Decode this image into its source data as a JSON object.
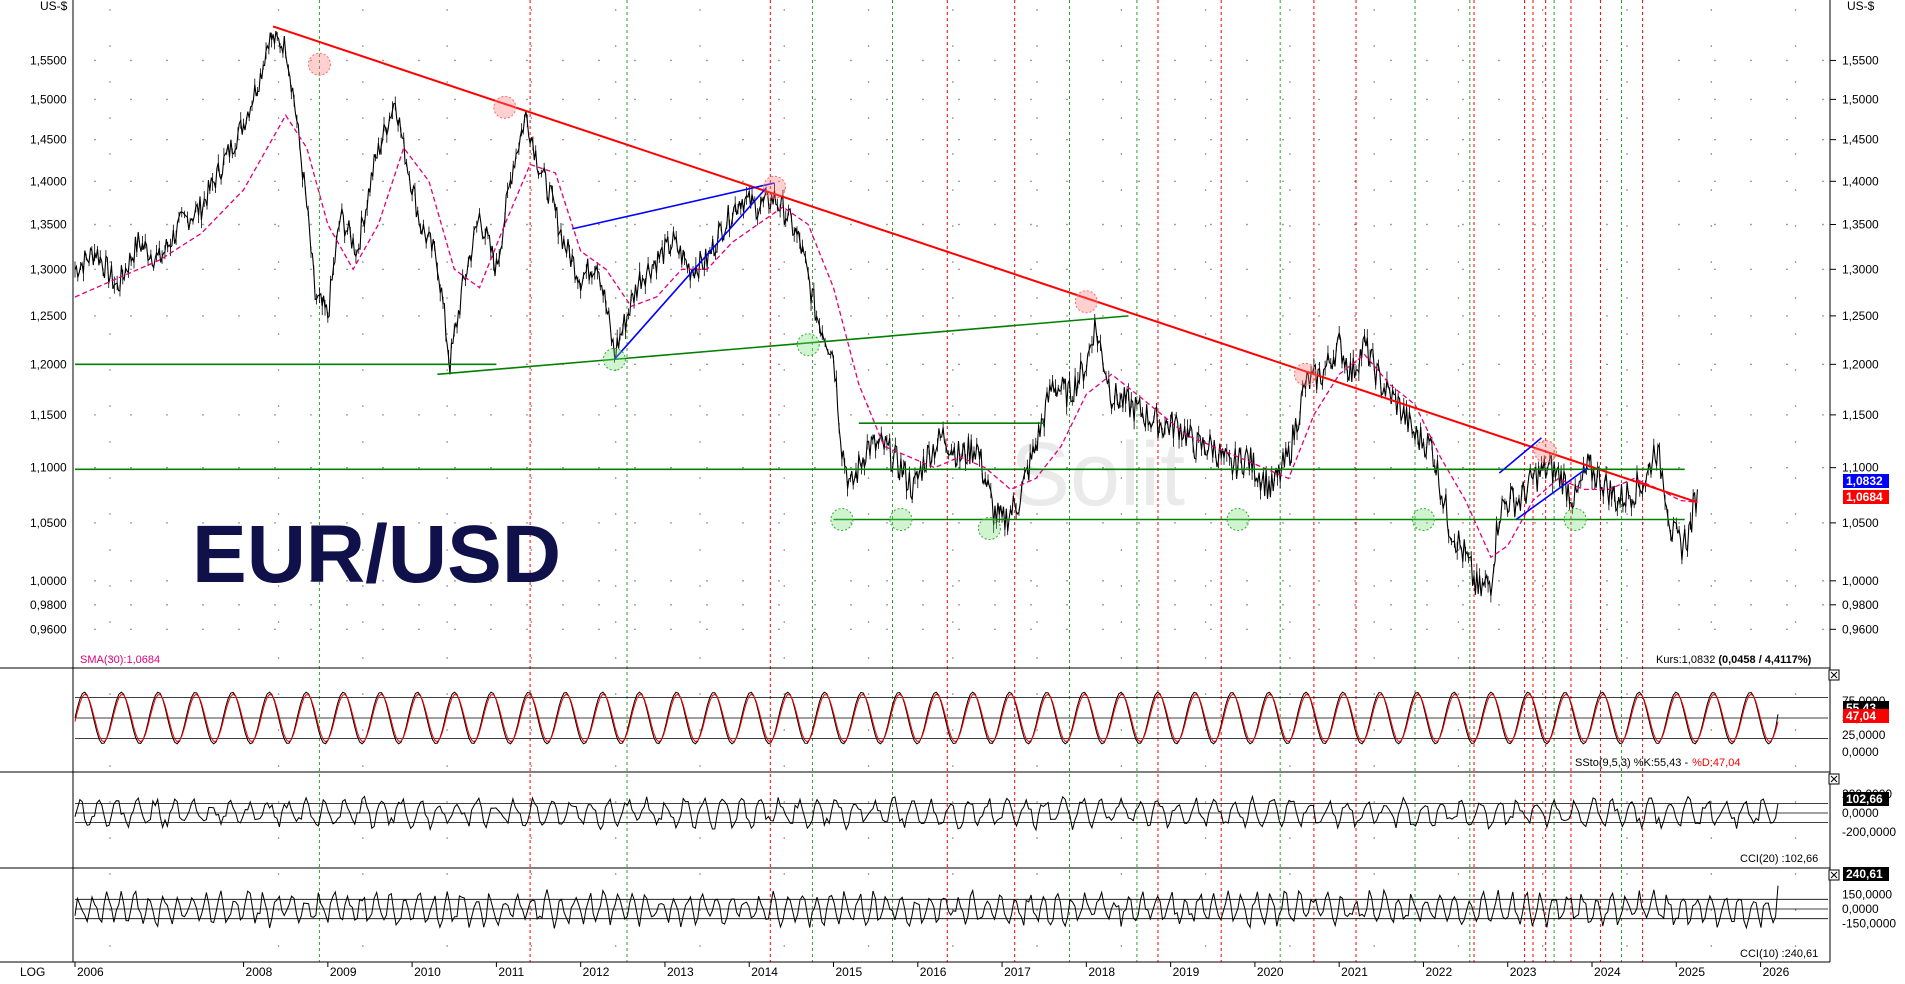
{
  "title": "EUR/USD",
  "axis_unit_left": "US-$",
  "axis_unit_right": "US-$",
  "scale_label": "LOG",
  "watermark": "Solit",
  "price_panel": {
    "sma_label": "SMA(30):1,0684",
    "kurs_label": "Kurs:1,0832",
    "kurs_change": "(0,0458 / 4,4117%)",
    "last_price_badge": "1,0832",
    "sma_badge": "1,0684",
    "y_ticks": [
      "1,5500",
      "1,5000",
      "1,4500",
      "1,4000",
      "1,3500",
      "1,3000",
      "1,2500",
      "1,2000",
      "1,1500",
      "1,1000",
      "1,0500",
      "1,0000",
      "0,9800",
      "0,9600"
    ]
  },
  "stoch_panel": {
    "label_prefix": "SSto(9,5,3) %K:55,43 -",
    "label_d": "%D:47,04",
    "badge_k": "55,43",
    "badge_d": "47,04",
    "y_ticks": [
      "75,0000",
      "50,0000",
      "25,0000",
      "0,0000"
    ]
  },
  "cci20_panel": {
    "label": "CCI(20) :102,66",
    "badge": "102,66",
    "y_ticks": [
      "200,0000",
      "0,0000",
      "-200,0000"
    ]
  },
  "cci10_panel": {
    "label": "CCI(10) :240,61",
    "badge": "240,61",
    "y_ticks": [
      "150,0000",
      "0,0000",
      "-150,0000"
    ]
  },
  "x_tick_labels": [
    "2006",
    "2008",
    "2009",
    "2010",
    "2011",
    "2012",
    "2013",
    "2014",
    "2015",
    "2016",
    "2017",
    "2018",
    "2019",
    "2020",
    "2021",
    "2022",
    "2023",
    "2024",
    "2025",
    "2026"
  ],
  "colors": {
    "price": "#000000",
    "sma": "#e0007a",
    "resistance": "#ff0000",
    "support": "#008000",
    "channel": "#0000ff",
    "stoch_k": "#000000",
    "stoch_d": "#ff0000",
    "badge_blue": "#0000ff",
    "badge_red": "#ff0000",
    "green_vline": "#2ca02c",
    "red_vline": "#ff0000"
  },
  "chart_data": {
    "type": "line",
    "title": "EUR/USD",
    "ylabel": "US-$",
    "yscale": "log",
    "ylim": [
      0.945,
      1.62
    ],
    "xlim": [
      2006.0,
      2026.8
    ],
    "x_ticks": [
      2006,
      2008,
      2009,
      2010,
      2011,
      2012,
      2013,
      2014,
      2015,
      2016,
      2017,
      2018,
      2019,
      2020,
      2021,
      2022,
      2023,
      2024,
      2025,
      2026
    ],
    "series": [
      {
        "name": "EUR/USD",
        "x": [
          2006.0,
          2006.25,
          2006.5,
          2006.75,
          2007.0,
          2007.25,
          2007.5,
          2007.75,
          2008.0,
          2008.2,
          2008.3,
          2008.5,
          2008.6,
          2008.75,
          2008.85,
          2009.0,
          2009.15,
          2009.35,
          2009.55,
          2009.8,
          2009.9,
          2010.1,
          2010.3,
          2010.45,
          2010.6,
          2010.8,
          2011.0,
          2011.2,
          2011.35,
          2011.5,
          2011.65,
          2011.8,
          2012.0,
          2012.2,
          2012.4,
          2012.55,
          2012.7,
          2012.9,
          2013.1,
          2013.3,
          2013.5,
          2013.7,
          2013.9,
          2014.1,
          2014.3,
          2014.45,
          2014.6,
          2014.8,
          2015.0,
          2015.1,
          2015.2,
          2015.4,
          2015.6,
          2015.8,
          2015.95,
          2016.1,
          2016.3,
          2016.5,
          2016.7,
          2016.9,
          2017.0,
          2017.2,
          2017.4,
          2017.6,
          2017.8,
          2018.0,
          2018.1,
          2018.3,
          2018.5,
          2018.7,
          2018.9,
          2019.1,
          2019.3,
          2019.5,
          2019.7,
          2019.9,
          2020.1,
          2020.2,
          2020.4,
          2020.6,
          2020.8,
          2021.0,
          2021.15,
          2021.3,
          2021.5,
          2021.7,
          2021.9,
          2022.1,
          2022.3,
          2022.5,
          2022.65,
          2022.8,
          2022.9,
          2023.0,
          2023.15,
          2023.3,
          2023.5,
          2023.65,
          2023.8,
          2023.95,
          2024.1,
          2024.3,
          2024.5,
          2024.65,
          2024.75,
          2024.85,
          2024.95,
          2025.05,
          2025.15,
          2025.25
        ],
        "values": [
          1.3,
          1.32,
          1.28,
          1.33,
          1.31,
          1.35,
          1.37,
          1.42,
          1.47,
          1.53,
          1.58,
          1.57,
          1.5,
          1.37,
          1.27,
          1.25,
          1.36,
          1.32,
          1.42,
          1.5,
          1.44,
          1.35,
          1.31,
          1.2,
          1.28,
          1.36,
          1.3,
          1.42,
          1.48,
          1.42,
          1.38,
          1.33,
          1.29,
          1.31,
          1.21,
          1.25,
          1.29,
          1.31,
          1.33,
          1.3,
          1.31,
          1.35,
          1.38,
          1.37,
          1.38,
          1.36,
          1.33,
          1.25,
          1.21,
          1.12,
          1.08,
          1.12,
          1.12,
          1.1,
          1.08,
          1.11,
          1.13,
          1.11,
          1.12,
          1.06,
          1.05,
          1.07,
          1.12,
          1.18,
          1.17,
          1.2,
          1.24,
          1.17,
          1.16,
          1.15,
          1.14,
          1.14,
          1.12,
          1.12,
          1.1,
          1.11,
          1.09,
          1.08,
          1.11,
          1.18,
          1.19,
          1.22,
          1.19,
          1.22,
          1.18,
          1.16,
          1.13,
          1.12,
          1.05,
          1.02,
          0.99,
          1.0,
          1.06,
          1.07,
          1.07,
          1.09,
          1.1,
          1.09,
          1.07,
          1.1,
          1.09,
          1.07,
          1.08,
          1.09,
          1.12,
          1.09,
          1.04,
          1.03,
          1.04,
          1.08
        ]
      },
      {
        "name": "SMA(30)",
        "x": [
          2006.0,
          2006.5,
          2007.0,
          2007.5,
          2008.0,
          2008.5,
          2008.75,
          2009.0,
          2009.3,
          2009.6,
          2009.9,
          2010.2,
          2010.5,
          2010.8,
          2011.1,
          2011.4,
          2011.7,
          2012.0,
          2012.3,
          2012.6,
          2012.9,
          2013.2,
          2013.5,
          2013.8,
          2014.1,
          2014.4,
          2014.7,
          2015.0,
          2015.3,
          2015.6,
          2015.9,
          2016.2,
          2016.5,
          2016.8,
          2017.1,
          2017.4,
          2017.7,
          2018.0,
          2018.3,
          2018.6,
          2018.9,
          2019.2,
          2019.5,
          2019.8,
          2020.1,
          2020.4,
          2020.7,
          2021.0,
          2021.3,
          2021.6,
          2021.9,
          2022.2,
          2022.5,
          2022.8,
          2023.0,
          2023.3,
          2023.6,
          2023.9,
          2024.2,
          2024.5,
          2024.8,
          2025.05,
          2025.25
        ],
        "values": [
          1.27,
          1.29,
          1.31,
          1.34,
          1.39,
          1.48,
          1.44,
          1.35,
          1.3,
          1.35,
          1.44,
          1.4,
          1.3,
          1.28,
          1.35,
          1.42,
          1.41,
          1.32,
          1.3,
          1.26,
          1.27,
          1.3,
          1.3,
          1.33,
          1.35,
          1.37,
          1.35,
          1.28,
          1.18,
          1.12,
          1.11,
          1.1,
          1.11,
          1.1,
          1.08,
          1.09,
          1.12,
          1.17,
          1.19,
          1.17,
          1.15,
          1.13,
          1.12,
          1.11,
          1.1,
          1.09,
          1.15,
          1.19,
          1.21,
          1.18,
          1.16,
          1.11,
          1.07,
          1.02,
          1.03,
          1.07,
          1.09,
          1.08,
          1.08,
          1.09,
          1.08,
          1.07,
          1.0684
        ]
      }
    ],
    "trendlines": [
      {
        "name": "resistance",
        "x": [
          2008.35,
          2025.25
        ],
        "y": [
          1.595,
          1.0684
        ]
      },
      {
        "name": "support-level-1.20",
        "x": [
          2006.0,
          2011.0
        ],
        "y": [
          1.2,
          1.2
        ]
      },
      {
        "name": "support-rising",
        "x": [
          2010.3,
          2018.5
        ],
        "y": [
          1.19,
          1.25
        ]
      },
      {
        "name": "level-1.0985",
        "x": [
          2006.0,
          2025.1
        ],
        "y": [
          1.0985,
          1.0985
        ]
      },
      {
        "name": "level-1.0530",
        "x": [
          2015.0,
          2025.1
        ],
        "y": [
          1.053,
          1.053
        ]
      },
      {
        "name": "level-1.1420",
        "x": [
          2015.3,
          2017.5
        ],
        "y": [
          1.142,
          1.142
        ]
      },
      {
        "name": "channel-upper",
        "x": [
          2011.9,
          2014.3
        ],
        "y": [
          1.345,
          1.398
        ]
      },
      {
        "name": "channel-lower",
        "x": [
          2012.4,
          2014.2
        ],
        "y": [
          1.205,
          1.392
        ]
      },
      {
        "name": "channel-2023-upper",
        "x": [
          2022.9,
          2023.4
        ],
        "y": [
          1.095,
          1.128
        ]
      },
      {
        "name": "channel-2023-lower",
        "x": [
          2023.1,
          2023.95
        ],
        "y": [
          1.053,
          1.1
        ]
      }
    ],
    "stochastic": {
      "ylim": [
        0,
        100
      ],
      "levels": [
        20,
        50,
        80
      ],
      "k_last": 55.43,
      "d_last": 47.04
    },
    "cci20": {
      "ylim": [
        -330,
        330
      ],
      "levels": [
        -100,
        0,
        100
      ],
      "last": 102.66
    },
    "cci10": {
      "ylim": [
        -320,
        320
      ],
      "levels": [
        -100,
        0,
        100
      ],
      "last": 240.61
    }
  }
}
